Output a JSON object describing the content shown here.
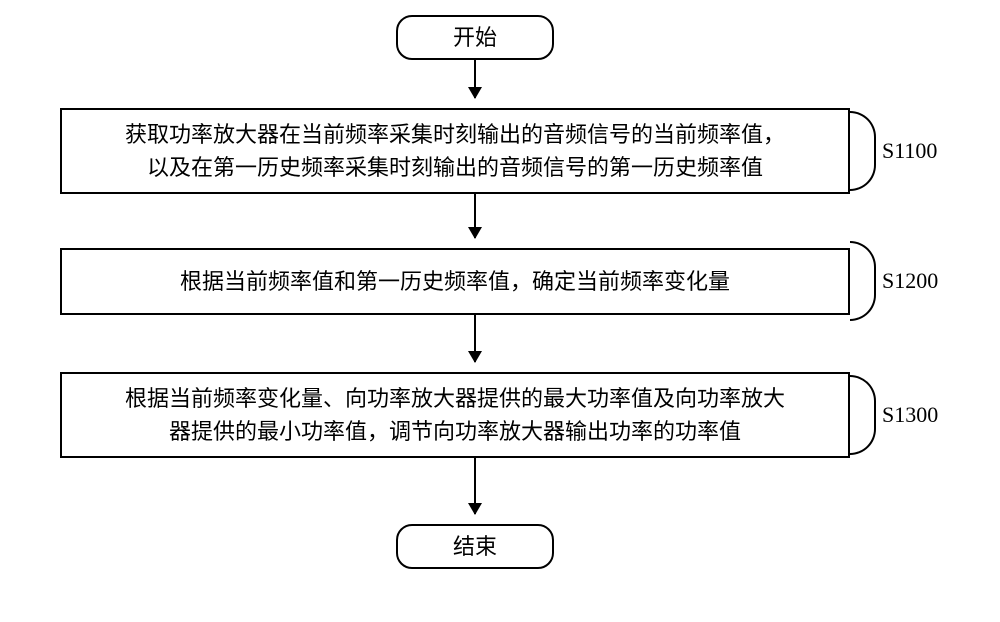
{
  "type": "flowchart",
  "background_color": "#ffffff",
  "stroke_color": "#000000",
  "stroke_width": 2,
  "font_family": "SimSun",
  "nodes": {
    "start": {
      "text": "开始",
      "fontsize": 22,
      "shape": "terminal"
    },
    "s1100": {
      "text": "获取功率放大器在当前频率采集时刻输出的音频信号的当前频率值，\n以及在第一历史频率采集时刻输出的音频信号的第一历史频率值",
      "fontsize": 22,
      "shape": "process",
      "label": "S1100"
    },
    "s1200": {
      "text": "根据当前频率值和第一历史频率值，确定当前频率变化量",
      "fontsize": 22,
      "shape": "process",
      "label": "S1200"
    },
    "s1300": {
      "text": "根据当前频率变化量、向功率放大器提供的最大功率值及向功率放大\n器提供的最小功率值，调节向功率放大器输出功率的功率值",
      "fontsize": 22,
      "shape": "process",
      "label": "S1300"
    },
    "end": {
      "text": "结束",
      "fontsize": 22,
      "shape": "terminal"
    }
  },
  "edges": [
    {
      "from": "start",
      "to": "s1100"
    },
    {
      "from": "s1100",
      "to": "s1200"
    },
    {
      "from": "s1200",
      "to": "s1300"
    },
    {
      "from": "s1300",
      "to": "end"
    }
  ],
  "label_fontsize": 22,
  "arrow_head": {
    "width": 14,
    "height": 12
  }
}
